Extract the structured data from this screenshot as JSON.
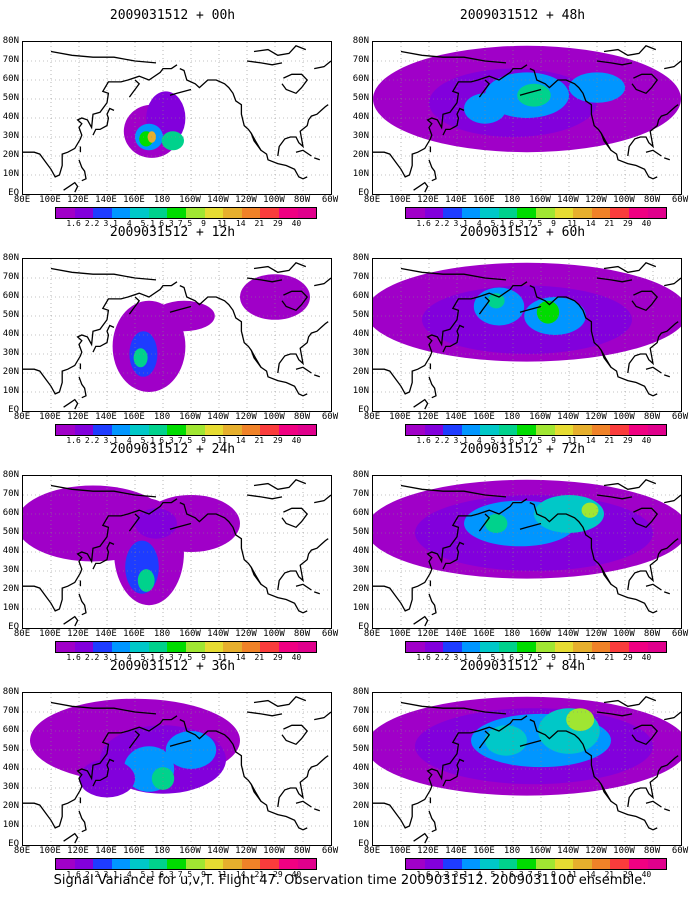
{
  "caption": "Signal Variance for u,v,T. Flight 47. Observation time 2009031512. 2009031100 ensemble.",
  "panels": [
    {
      "title": "2009031512 + 00h",
      "lead_h": 0
    },
    {
      "title": "2009031512 + 48h",
      "lead_h": 48
    },
    {
      "title": "2009031512 + 12h",
      "lead_h": 12
    },
    {
      "title": "2009031512 + 60h",
      "lead_h": 60
    },
    {
      "title": "2009031512 + 24h",
      "lead_h": 24
    },
    {
      "title": "2009031512 + 72h",
      "lead_h": 72
    },
    {
      "title": "2009031512 + 36h",
      "lead_h": 36
    },
    {
      "title": "2009031512 + 84h",
      "lead_h": 84
    }
  ],
  "x_ticks": [
    "80E",
    "100E",
    "120E",
    "140E",
    "160E",
    "180",
    "160W",
    "140W",
    "120W",
    "100W",
    "80W",
    "60W"
  ],
  "y_ticks": [
    "80N",
    "70N",
    "60N",
    "50N",
    "40N",
    "30N",
    "20N",
    "10N",
    "EQ"
  ],
  "colorbar": {
    "labels": [
      "1.6",
      "2.2",
      "3.1",
      "4",
      "5.1",
      "6.3",
      "7.5",
      "9",
      "11",
      "14",
      "21",
      "29",
      "40"
    ],
    "colors": [
      "#a000c8",
      "#8200dc",
      "#1e3cff",
      "#0096ff",
      "#00c8c8",
      "#00d28c",
      "#00dc00",
      "#a0e632",
      "#e6dc32",
      "#e6af2d",
      "#f08228",
      "#fa3c3c",
      "#f00082"
    ]
  }
}
